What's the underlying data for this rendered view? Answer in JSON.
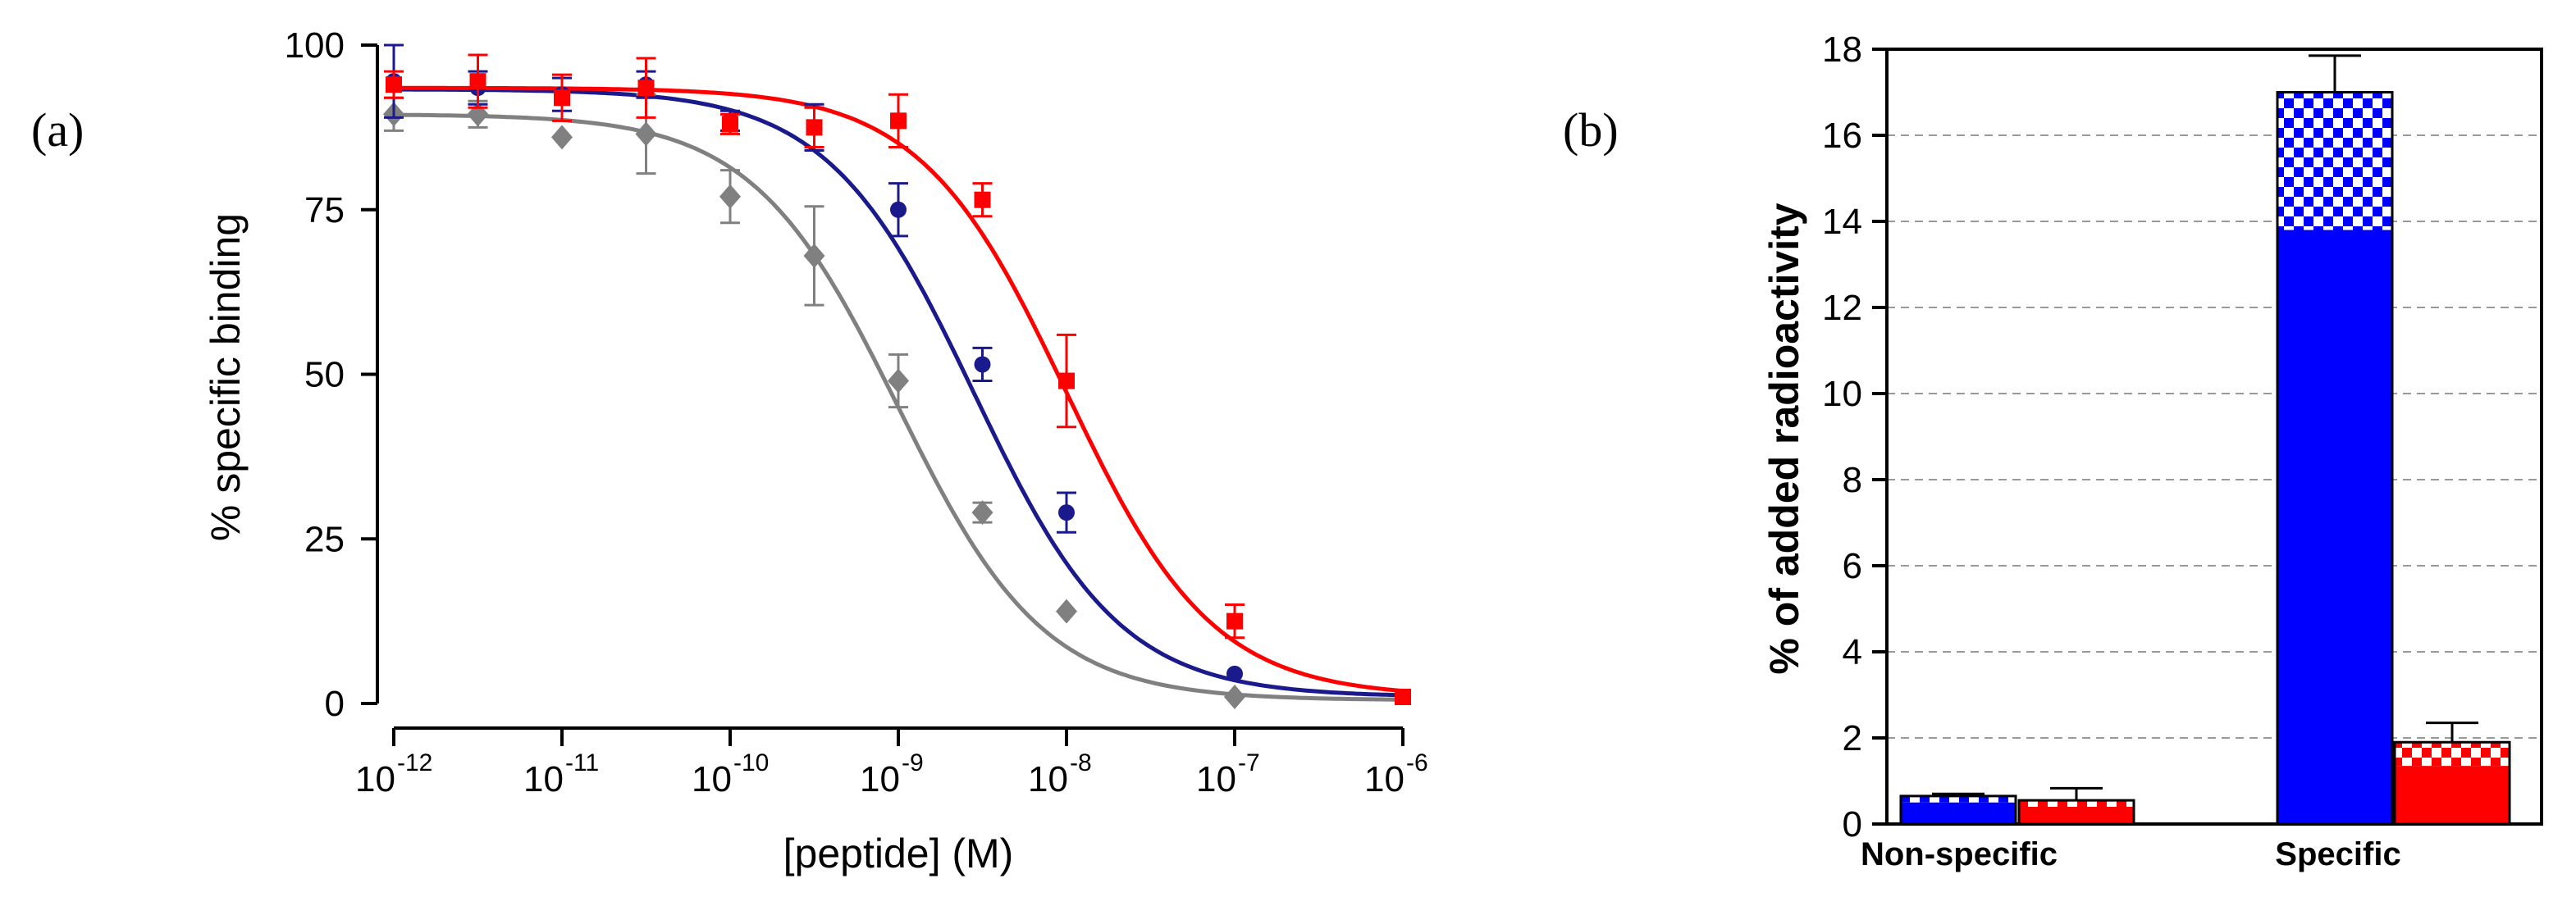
{
  "panels": {
    "a": {
      "label": "(a)"
    },
    "b": {
      "label": "(b)"
    }
  },
  "chart_data": [
    {
      "type": "scatter",
      "panel": "(a)",
      "title": "",
      "xlabel": "[peptide] (M)",
      "ylabel": "% specific binding",
      "xscale": "log",
      "xlim": [
        1e-12,
        1e-06
      ],
      "ylim": [
        0,
        100
      ],
      "y_ticks": [
        "0",
        "25",
        "50",
        "75",
        "100"
      ],
      "x_ticks": [
        {
          "base": "10",
          "exp": "-12"
        },
        {
          "base": "10",
          "exp": "-11"
        },
        {
          "base": "10",
          "exp": "-10"
        },
        {
          "base": "10",
          "exp": "-9"
        },
        {
          "base": "10",
          "exp": "-8"
        },
        {
          "base": "10",
          "exp": "-7"
        },
        {
          "base": "10",
          "exp": "-6"
        }
      ],
      "series": [
        {
          "name": "gray",
          "color": "#808080",
          "marker": "diamond",
          "fit": {
            "top": 89.5,
            "bottom": 0.5,
            "log_ic50": -9.0,
            "hill": 1.0
          },
          "points": [
            {
              "logx": -12.0,
              "y": 89.5,
              "err": 2.5
            },
            {
              "logx": -11.5,
              "y": 89.5,
              "err": 2.0
            },
            {
              "logx": -11.0,
              "y": 86.0,
              "err": 0
            },
            {
              "logx": -10.5,
              "y": 86.5,
              "err": 6.0
            },
            {
              "logx": -10.0,
              "y": 77.0,
              "err": 4.0
            },
            {
              "logx": -9.5,
              "y": 68.0,
              "err": 7.5
            },
            {
              "logx": -9.0,
              "y": 49.0,
              "err": 4.0
            },
            {
              "logx": -8.5,
              "y": 29.0,
              "err": 1.5
            },
            {
              "logx": -8.0,
              "y": 14.0,
              "err": 0
            },
            {
              "logx": -7.0,
              "y": 1.0,
              "err": 0
            }
          ]
        },
        {
          "name": "navy",
          "color": "#1a1a8c",
          "marker": "circle",
          "fit": {
            "top": 93.3,
            "bottom": 1.0,
            "log_ic50": -8.55,
            "hill": 1.0
          },
          "points": [
            {
              "logx": -12.0,
              "y": 94.5,
              "err": 5.5
            },
            {
              "logx": -11.5,
              "y": 93.5,
              "err": 2.5
            },
            {
              "logx": -11.0,
              "y": 92.5,
              "err": 2.5
            },
            {
              "logx": -10.5,
              "y": 94.0,
              "err": 2.0
            },
            {
              "logx": -10.0,
              "y": 88.5,
              "err": 1.5
            },
            {
              "logx": -9.5,
              "y": 87.5,
              "err": 3.5
            },
            {
              "logx": -9.0,
              "y": 75.0,
              "err": 4.0
            },
            {
              "logx": -8.5,
              "y": 51.5,
              "err": 2.5
            },
            {
              "logx": -8.0,
              "y": 29.0,
              "err": 3.0
            },
            {
              "logx": -7.0,
              "y": 4.5,
              "err": 0
            },
            {
              "logx": -6.0,
              "y": 1.0,
              "err": 0
            }
          ]
        },
        {
          "name": "red",
          "color": "#ff0000",
          "marker": "square",
          "fit": {
            "top": 93.5,
            "bottom": 1.0,
            "log_ic50": -8.0,
            "hill": 1.0
          },
          "points": [
            {
              "logx": -12.0,
              "y": 94.0,
              "err": 2.0
            },
            {
              "logx": -11.5,
              "y": 94.5,
              "err": 4.0
            },
            {
              "logx": -11.0,
              "y": 92.0,
              "err": 3.5
            },
            {
              "logx": -10.5,
              "y": 93.5,
              "err": 4.5
            },
            {
              "logx": -10.0,
              "y": 88.0,
              "err": 1.5
            },
            {
              "logx": -9.5,
              "y": 87.5,
              "err": 3.0
            },
            {
              "logx": -9.0,
              "y": 88.5,
              "err": 4.0
            },
            {
              "logx": -8.5,
              "y": 76.5,
              "err": 2.5
            },
            {
              "logx": -8.0,
              "y": 49.0,
              "err": 7.0
            },
            {
              "logx": -7.0,
              "y": 12.5,
              "err": 2.5
            },
            {
              "logx": -6.0,
              "y": 1.0,
              "err": 0
            }
          ]
        }
      ]
    },
    {
      "type": "bar",
      "panel": "(b)",
      "title": "",
      "xlabel": "",
      "ylabel": "% of added radioactivity",
      "ylim": [
        0,
        18
      ],
      "y_ticks": [
        "0",
        "2",
        "4",
        "6",
        "8",
        "10",
        "12",
        "14",
        "16",
        "18"
      ],
      "grid": "horizontal dashed",
      "categories": [
        "Non-specific",
        "Specific"
      ],
      "series": [
        {
          "name": "blue",
          "color": "#0000ff",
          "solid": [
            0.5,
            13.8
          ],
          "checkered_top": [
            0.65,
            17.0
          ],
          "err": [
            0.05,
            0.85
          ]
        },
        {
          "name": "red",
          "color": "#ff0000",
          "solid": [
            0.4,
            1.35
          ],
          "checkered_top": [
            0.55,
            1.9
          ],
          "err": [
            0.28,
            0.45
          ]
        }
      ]
    }
  ]
}
